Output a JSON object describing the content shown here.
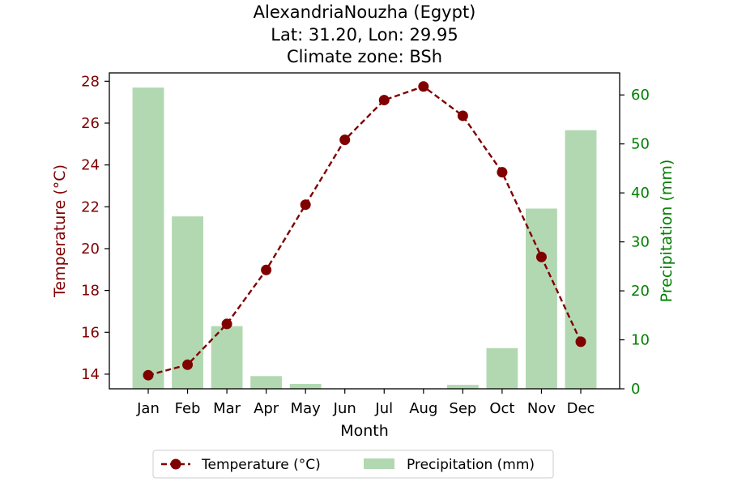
{
  "chart_data": {
    "type": "bar+line",
    "title_lines": [
      "AlexandriaNouzha (Egypt)",
      "Lat: 31.20, Lon: 29.95",
      "Climate zone: BSh"
    ],
    "xlabel": "Month",
    "categories": [
      "Jan",
      "Feb",
      "Mar",
      "Apr",
      "May",
      "Jun",
      "Jul",
      "Aug",
      "Sep",
      "Oct",
      "Nov",
      "Dec"
    ],
    "temperature": {
      "name": "Temperature (°C)",
      "axis_label": "Temperature (°C)",
      "values": [
        13.95,
        14.45,
        16.4,
        18.98,
        22.1,
        25.2,
        27.1,
        27.75,
        26.35,
        23.65,
        19.6,
        15.55
      ],
      "ylim": [
        13.3,
        28.4
      ],
      "ticks": [
        14,
        16,
        18,
        20,
        22,
        24,
        26,
        28
      ],
      "color": "#800000"
    },
    "precipitation": {
      "name": "Precipitation (mm)",
      "axis_label": "Precipitation (mm)",
      "values": [
        61.5,
        35.2,
        12.8,
        2.6,
        1.0,
        0,
        0,
        0,
        0.8,
        8.3,
        36.8,
        52.8
      ],
      "ylim": [
        0,
        64.5
      ],
      "ticks": [
        0,
        10,
        20,
        30,
        40,
        50,
        60
      ],
      "color": "#b2d8b2",
      "axis_color": "#008000"
    },
    "legend_position": "below-center"
  }
}
